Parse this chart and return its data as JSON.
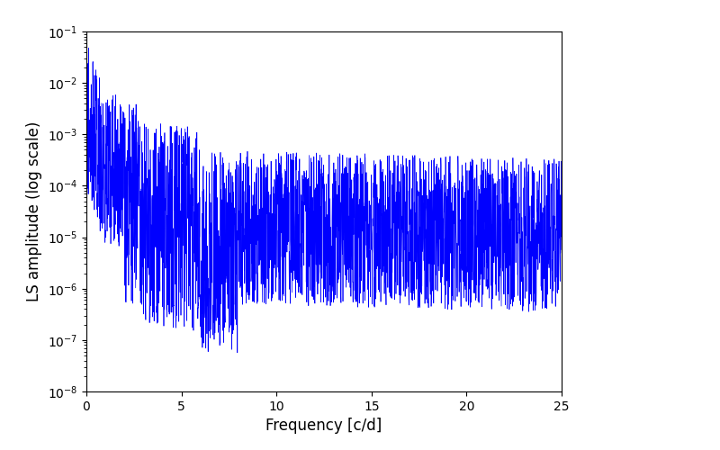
{
  "xlabel": "Frequency [c/d]",
  "ylabel": "LS amplitude (log scale)",
  "xlim": [
    0,
    25
  ],
  "ylim": [
    1e-08,
    0.1
  ],
  "line_color": "#0000ff",
  "line_width": 0.5,
  "background_color": "#ffffff",
  "figsize": [
    8.0,
    5.0
  ],
  "dpi": 100,
  "xticks": [
    0,
    5,
    10,
    15,
    20,
    25
  ],
  "xlabel_fontsize": 12,
  "ylabel_fontsize": 12,
  "seed": 42,
  "n_points": 2500,
  "freq_max": 25.0,
  "peak_amplitude": 0.06,
  "noise_floor": 1e-08
}
